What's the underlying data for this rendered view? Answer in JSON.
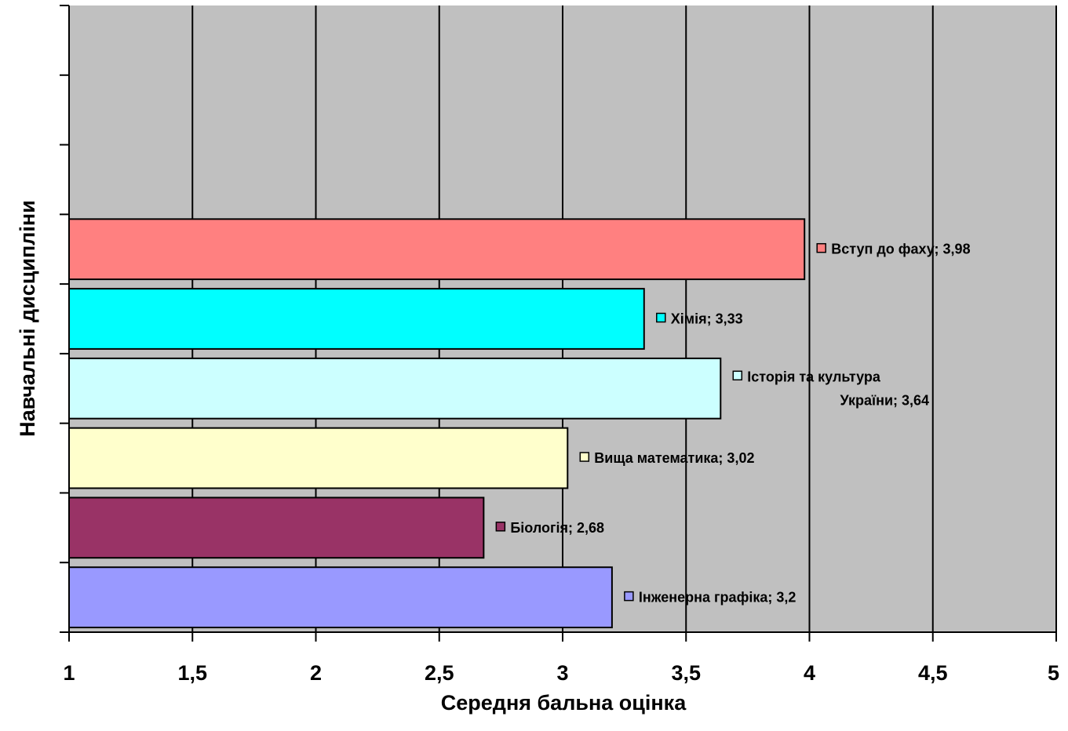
{
  "chart_data": {
    "type": "bar",
    "orientation": "horizontal",
    "xlabel": "Середня бальна оцінка",
    "ylabel": "Навчальні дисципліни",
    "xlim": [
      1,
      5
    ],
    "x_ticks": [
      "1",
      "1,5",
      "2",
      "2,5",
      "3",
      "3,5",
      "4",
      "4,5",
      "5"
    ],
    "grid": "vertical",
    "plot_background": "#c0c0c0",
    "category_slots": 9,
    "bars": [
      {
        "name": "Інженерна графіка",
        "value": 3.2,
        "label_lines": [
          "Інженерна графіка; 3,2"
        ],
        "color": "#9999ff"
      },
      {
        "name": "Біологія",
        "value": 2.68,
        "label_lines": [
          "Біологія; 2,68"
        ],
        "color": "#993366"
      },
      {
        "name": "Вища математика",
        "value": 3.02,
        "label_lines": [
          "Вища математика; 3,02"
        ],
        "color": "#ffffcc"
      },
      {
        "name": "Історія та культура України",
        "value": 3.64,
        "label_lines": [
          "Історія та культура",
          "України; 3,64"
        ],
        "color": "#ccffff"
      },
      {
        "name": "Хімія",
        "value": 3.33,
        "label_lines": [
          "Хімія; 3,33"
        ],
        "color": "#00ffff"
      },
      {
        "name": "Вступ до фаху",
        "value": 3.98,
        "label_lines": [
          "Вступ до фаху; 3,98"
        ],
        "color": "#ff8080"
      }
    ]
  }
}
